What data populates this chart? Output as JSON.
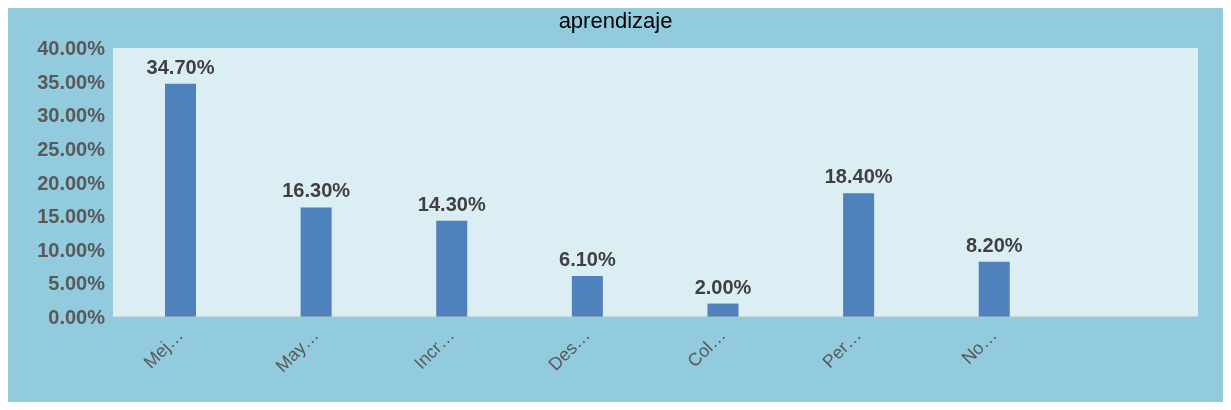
{
  "chart_data": {
    "type": "bar",
    "title": "aprendizaje",
    "categories": [
      "Mej…",
      "May…",
      "Incr…",
      "Des…",
      "Col…",
      "Per…",
      "No…",
      null
    ],
    "values": [
      34.7,
      16.3,
      14.3,
      6.1,
      2.0,
      18.4,
      8.2,
      null
    ],
    "value_labels": [
      "34.70%",
      "16.30%",
      "14.30%",
      "6.10%",
      "2.00%",
      "18.40%",
      "8.20%",
      null
    ],
    "color": "#4f81bd",
    "ylim": [
      0,
      40
    ],
    "yticks": [
      {
        "value": 0,
        "label": "0.00%"
      },
      {
        "value": 5,
        "label": "5.00%"
      },
      {
        "value": 10,
        "label": "10.00%"
      },
      {
        "value": 15,
        "label": "15.00%"
      },
      {
        "value": 20,
        "label": "20.00%"
      },
      {
        "value": 25,
        "label": "25.00%"
      },
      {
        "value": 30,
        "label": "30.00%"
      },
      {
        "value": 35,
        "label": "35.00%"
      },
      {
        "value": 40,
        "label": "40.00%"
      }
    ],
    "grid": false,
    "legend": false
  }
}
